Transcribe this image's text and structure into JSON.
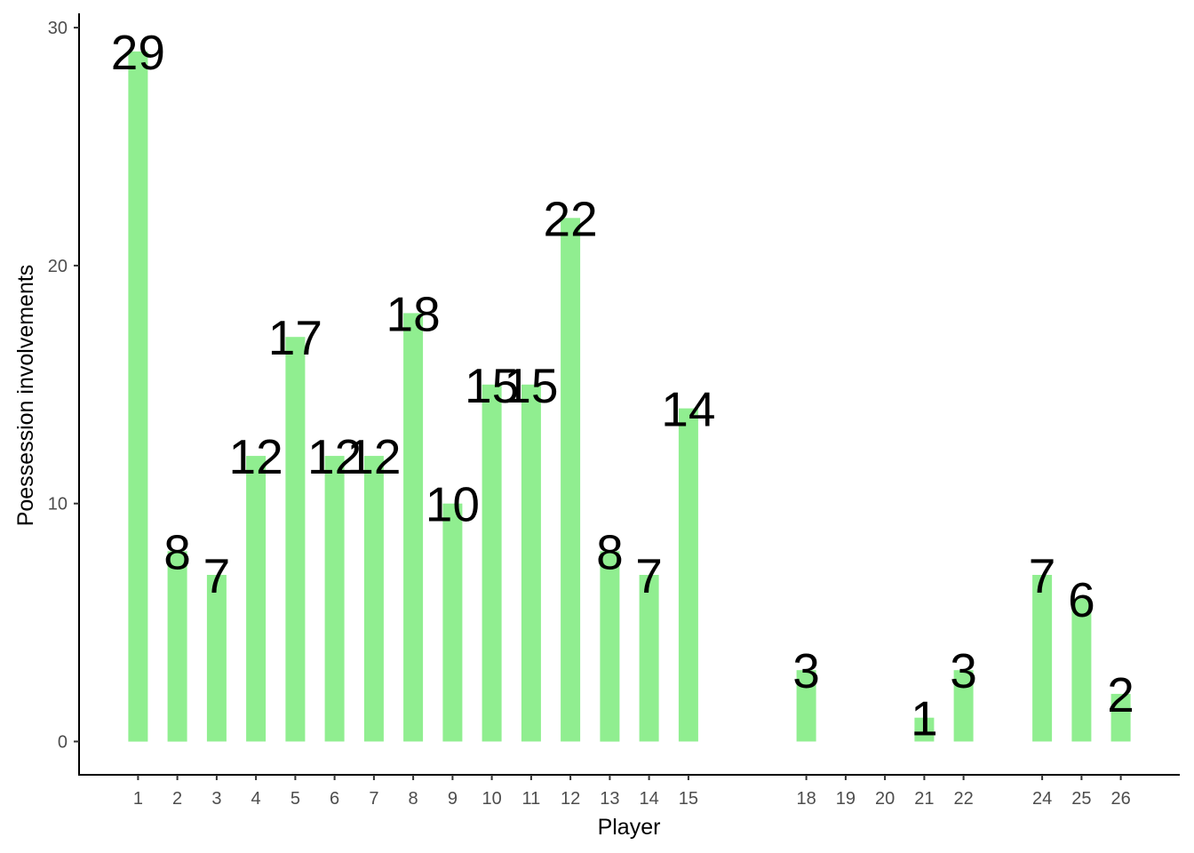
{
  "chart_data": {
    "type": "bar",
    "title": "",
    "xlabel": "Player",
    "ylabel": "Poessession involvements",
    "x": [
      1,
      2,
      3,
      4,
      5,
      6,
      7,
      8,
      9,
      10,
      11,
      12,
      13,
      14,
      15,
      18,
      21,
      22,
      24,
      25,
      26
    ],
    "values": [
      29,
      8,
      7,
      12,
      17,
      12,
      12,
      18,
      10,
      15,
      15,
      22,
      8,
      7,
      14,
      3,
      1,
      3,
      7,
      6,
      2
    ],
    "x_ticks": [
      1,
      2,
      3,
      4,
      5,
      6,
      7,
      8,
      9,
      10,
      11,
      12,
      13,
      14,
      15,
      18,
      19,
      20,
      21,
      22,
      24,
      25,
      26
    ],
    "y_ticks": [
      0,
      10,
      20,
      30
    ],
    "xlim": [
      -0.5,
      27.5
    ],
    "ylim": [
      -1.4,
      30.6
    ],
    "grid": false,
    "bar_color": "#90EE90",
    "label_color": "#000000"
  }
}
